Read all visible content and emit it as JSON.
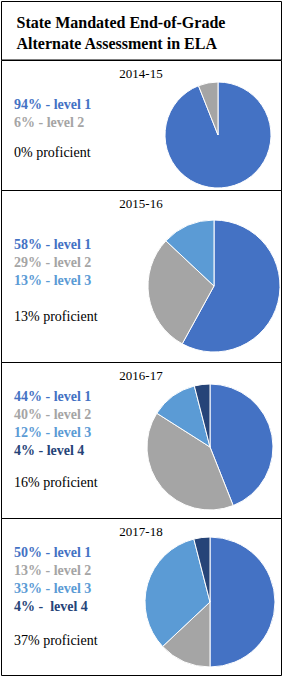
{
  "title": "State Mandated End-of-Grade Alternate Assessment in ELA",
  "chart_data": [
    {
      "type": "pie",
      "title": "2014-15",
      "categories": [
        "level 1",
        "level 2"
      ],
      "values": [
        94,
        6
      ],
      "value_labels": [
        "94% - level 1",
        "6% - level 2"
      ],
      "colors": [
        "#4472c4",
        "#a5a5a5"
      ],
      "annotations": [
        "0% proficient"
      ]
    },
    {
      "type": "pie",
      "title": "2015-16",
      "categories": [
        "level 1",
        "level 2",
        "level 3"
      ],
      "values": [
        58,
        29,
        13
      ],
      "value_labels": [
        "58% - level 1",
        "29% - level 2",
        "13% - level 3"
      ],
      "colors": [
        "#4472c4",
        "#a5a5a5",
        "#5b9bd5"
      ],
      "annotations": [
        "13% proficient"
      ]
    },
    {
      "type": "pie",
      "title": "2016-17",
      "categories": [
        "level 1",
        "level 2",
        "level 3",
        "level 4"
      ],
      "values": [
        44,
        40,
        12,
        4
      ],
      "value_labels": [
        "44% - level 1",
        "40% - level 2",
        "12% - level 3",
        "4% - level 4"
      ],
      "colors": [
        "#4472c4",
        "#a5a5a5",
        "#5b9bd5",
        "#264478"
      ],
      "annotations": [
        "16% proficient"
      ]
    },
    {
      "type": "pie",
      "title": "2017-18",
      "categories": [
        "level 1",
        "level 2",
        "level 3",
        "level 4"
      ],
      "values": [
        50,
        13,
        33,
        4
      ],
      "value_labels": [
        "50% - level 1",
        "13% - level 2",
        "33% - level 3",
        "4% -  level 4"
      ],
      "colors": [
        "#4472c4",
        "#a5a5a5",
        "#5b9bd5",
        "#264478"
      ],
      "annotations": [
        "37% proficient"
      ]
    }
  ]
}
